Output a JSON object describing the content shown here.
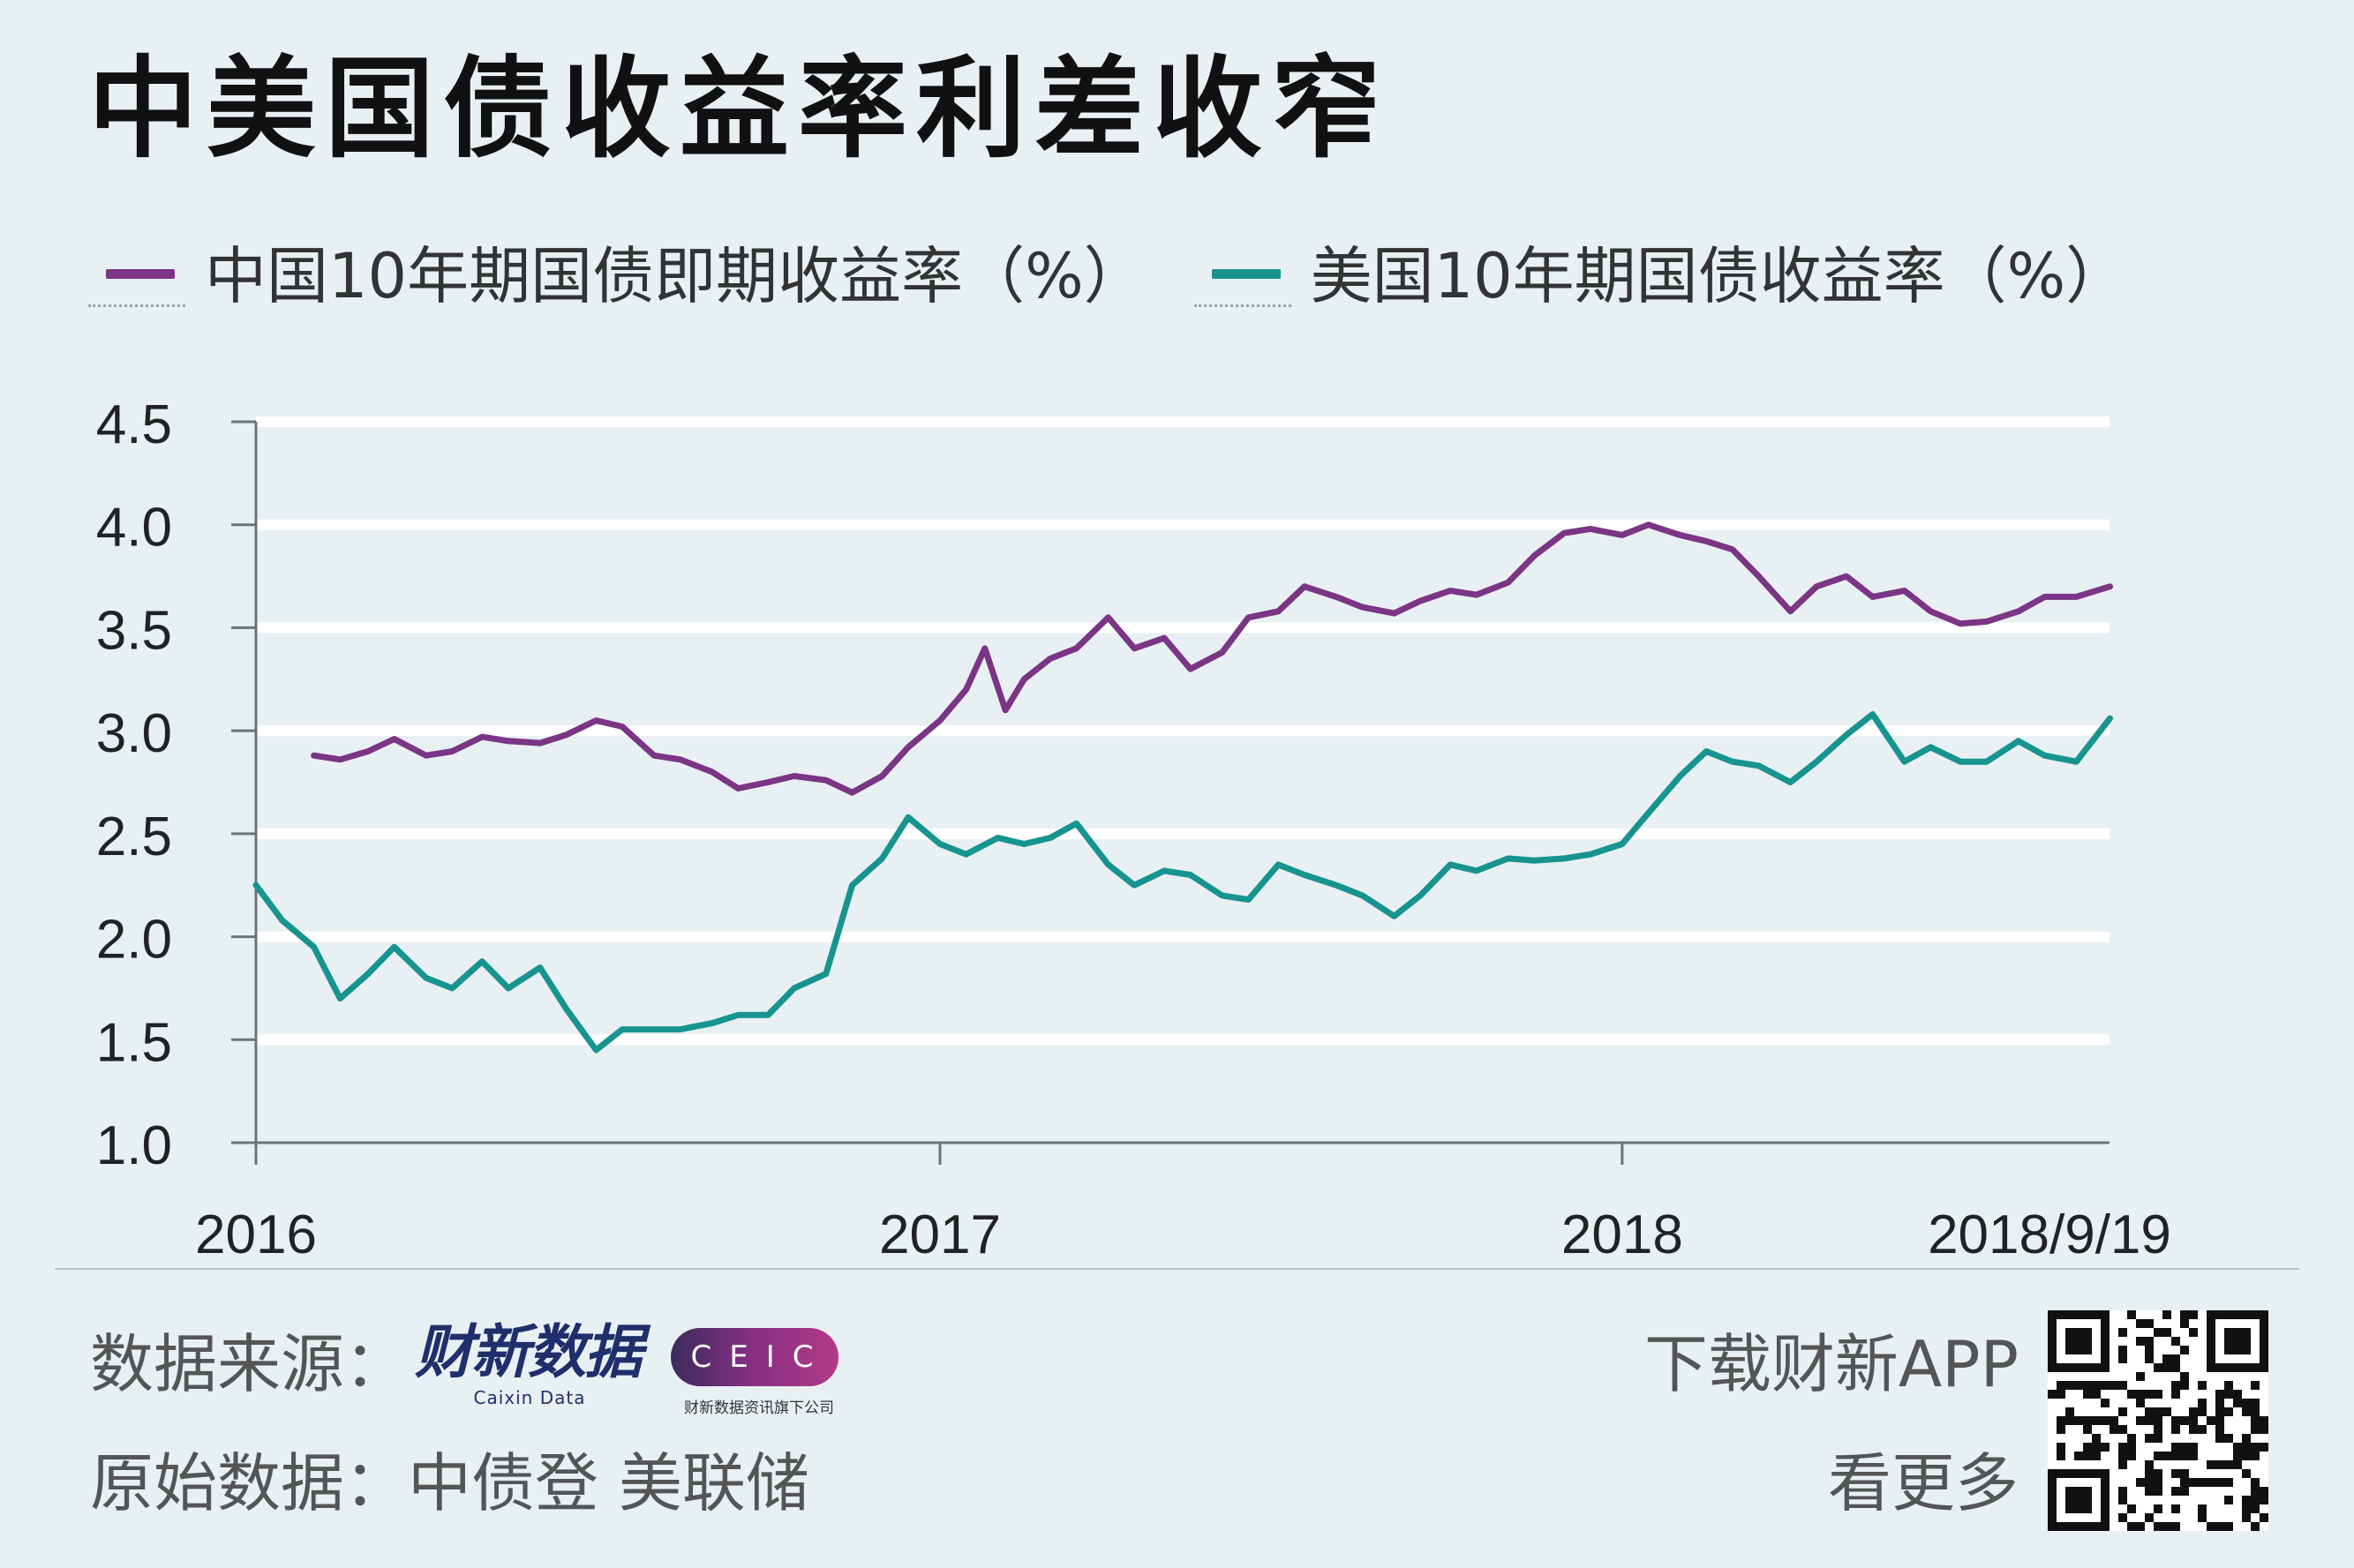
{
  "title": "中美国债收益率利差收窄",
  "legend": [
    {
      "label": "中国10年期国债即期收益率（%）",
      "color": "#7b3585"
    },
    {
      "label": "美国10年期国债收益率（%）",
      "color": "#17948f"
    }
  ],
  "chart_data": {
    "type": "line",
    "title": "中美国债收益率利差收窄",
    "xlabel": "",
    "ylabel": "",
    "ylim": [
      1.0,
      4.5
    ],
    "yticks": [
      "4.5",
      "4.0",
      "3.5",
      "3.0",
      "2.5",
      "2.0",
      "1.5",
      "1.0"
    ],
    "xlim": [
      "2016-01-01",
      "2018-09-19"
    ],
    "xticks": [
      {
        "label": "2016",
        "date": "2016-01-01"
      },
      {
        "label": "2017",
        "date": "2017-01-01"
      },
      {
        "label": "2018",
        "date": "2018-01-01"
      },
      {
        "label": "2018/9/19",
        "date": "2018-09-19"
      }
    ],
    "grid": true,
    "legend_position": "top",
    "series": [
      {
        "name": "中国10年期国债即期收益率（%）",
        "color": "#7b3585",
        "points": [
          [
            "2016-02-01",
            2.88
          ],
          [
            "2016-02-15",
            2.86
          ],
          [
            "2016-03-01",
            2.9
          ],
          [
            "2016-03-15",
            2.96
          ],
          [
            "2016-04-01",
            2.88
          ],
          [
            "2016-04-15",
            2.9
          ],
          [
            "2016-05-01",
            2.97
          ],
          [
            "2016-05-15",
            2.95
          ],
          [
            "2016-06-01",
            2.94
          ],
          [
            "2016-06-15",
            2.98
          ],
          [
            "2016-07-01",
            3.05
          ],
          [
            "2016-07-15",
            3.02
          ],
          [
            "2016-08-01",
            2.88
          ],
          [
            "2016-08-15",
            2.86
          ],
          [
            "2016-09-01",
            2.8
          ],
          [
            "2016-09-15",
            2.72
          ],
          [
            "2016-10-01",
            2.75
          ],
          [
            "2016-10-15",
            2.78
          ],
          [
            "2016-11-01",
            2.76
          ],
          [
            "2016-11-15",
            2.7
          ],
          [
            "2016-12-01",
            2.78
          ],
          [
            "2016-12-15",
            2.92
          ],
          [
            "2017-01-01",
            3.05
          ],
          [
            "2017-01-15",
            3.2
          ],
          [
            "2017-01-25",
            3.4
          ],
          [
            "2017-02-05",
            3.1
          ],
          [
            "2017-02-15",
            3.25
          ],
          [
            "2017-03-01",
            3.35
          ],
          [
            "2017-03-15",
            3.4
          ],
          [
            "2017-04-01",
            3.55
          ],
          [
            "2017-04-15",
            3.4
          ],
          [
            "2017-05-01",
            3.45
          ],
          [
            "2017-05-15",
            3.3
          ],
          [
            "2017-06-01",
            3.38
          ],
          [
            "2017-06-15",
            3.55
          ],
          [
            "2017-07-01",
            3.58
          ],
          [
            "2017-07-15",
            3.7
          ],
          [
            "2017-08-01",
            3.65
          ],
          [
            "2017-08-15",
            3.6
          ],
          [
            "2017-09-01",
            3.57
          ],
          [
            "2017-09-15",
            3.63
          ],
          [
            "2017-10-01",
            3.68
          ],
          [
            "2017-10-15",
            3.66
          ],
          [
            "2017-11-01",
            3.72
          ],
          [
            "2017-11-15",
            3.85
          ],
          [
            "2017-12-01",
            3.96
          ],
          [
            "2017-12-15",
            3.98
          ],
          [
            "2018-01-01",
            3.95
          ],
          [
            "2018-01-15",
            4.0
          ],
          [
            "2018-02-01",
            3.95
          ],
          [
            "2018-02-15",
            3.92
          ],
          [
            "2018-03-01",
            3.88
          ],
          [
            "2018-03-15",
            3.75
          ],
          [
            "2018-04-01",
            3.58
          ],
          [
            "2018-04-15",
            3.7
          ],
          [
            "2018-05-01",
            3.75
          ],
          [
            "2018-05-15",
            3.65
          ],
          [
            "2018-06-01",
            3.68
          ],
          [
            "2018-06-15",
            3.58
          ],
          [
            "2018-07-01",
            3.52
          ],
          [
            "2018-07-15",
            3.53
          ],
          [
            "2018-08-01",
            3.58
          ],
          [
            "2018-08-15",
            3.65
          ],
          [
            "2018-09-01",
            3.65
          ],
          [
            "2018-09-19",
            3.7
          ]
        ]
      },
      {
        "name": "美国10年期国债收益率（%）",
        "color": "#17948f",
        "points": [
          [
            "2016-01-01",
            2.25
          ],
          [
            "2016-01-15",
            2.08
          ],
          [
            "2016-02-01",
            1.95
          ],
          [
            "2016-02-15",
            1.7
          ],
          [
            "2016-03-01",
            1.82
          ],
          [
            "2016-03-15",
            1.95
          ],
          [
            "2016-04-01",
            1.8
          ],
          [
            "2016-04-15",
            1.75
          ],
          [
            "2016-05-01",
            1.88
          ],
          [
            "2016-05-15",
            1.75
          ],
          [
            "2016-06-01",
            1.85
          ],
          [
            "2016-06-15",
            1.65
          ],
          [
            "2016-07-01",
            1.45
          ],
          [
            "2016-07-15",
            1.55
          ],
          [
            "2016-08-01",
            1.55
          ],
          [
            "2016-08-15",
            1.55
          ],
          [
            "2016-09-01",
            1.58
          ],
          [
            "2016-09-15",
            1.62
          ],
          [
            "2016-10-01",
            1.62
          ],
          [
            "2016-10-15",
            1.75
          ],
          [
            "2016-11-01",
            1.82
          ],
          [
            "2016-11-15",
            2.25
          ],
          [
            "2016-12-01",
            2.38
          ],
          [
            "2016-12-15",
            2.58
          ],
          [
            "2017-01-01",
            2.45
          ],
          [
            "2017-01-15",
            2.4
          ],
          [
            "2017-02-01",
            2.48
          ],
          [
            "2017-02-15",
            2.45
          ],
          [
            "2017-03-01",
            2.48
          ],
          [
            "2017-03-15",
            2.55
          ],
          [
            "2017-04-01",
            2.35
          ],
          [
            "2017-04-15",
            2.25
          ],
          [
            "2017-05-01",
            2.32
          ],
          [
            "2017-05-15",
            2.3
          ],
          [
            "2017-06-01",
            2.2
          ],
          [
            "2017-06-15",
            2.18
          ],
          [
            "2017-07-01",
            2.35
          ],
          [
            "2017-07-15",
            2.3
          ],
          [
            "2017-08-01",
            2.25
          ],
          [
            "2017-08-15",
            2.2
          ],
          [
            "2017-09-01",
            2.1
          ],
          [
            "2017-09-15",
            2.2
          ],
          [
            "2017-10-01",
            2.35
          ],
          [
            "2017-10-15",
            2.32
          ],
          [
            "2017-11-01",
            2.38
          ],
          [
            "2017-11-15",
            2.37
          ],
          [
            "2017-12-01",
            2.38
          ],
          [
            "2017-12-15",
            2.4
          ],
          [
            "2018-01-01",
            2.45
          ],
          [
            "2018-01-15",
            2.6
          ],
          [
            "2018-02-01",
            2.78
          ],
          [
            "2018-02-15",
            2.9
          ],
          [
            "2018-03-01",
            2.85
          ],
          [
            "2018-03-15",
            2.83
          ],
          [
            "2018-04-01",
            2.75
          ],
          [
            "2018-04-15",
            2.85
          ],
          [
            "2018-05-01",
            2.98
          ],
          [
            "2018-05-15",
            3.08
          ],
          [
            "2018-06-01",
            2.85
          ],
          [
            "2018-06-15",
            2.92
          ],
          [
            "2018-07-01",
            2.85
          ],
          [
            "2018-07-15",
            2.85
          ],
          [
            "2018-08-01",
            2.95
          ],
          [
            "2018-08-15",
            2.88
          ],
          [
            "2018-09-01",
            2.85
          ],
          [
            "2018-09-19",
            3.06
          ]
        ]
      }
    ]
  },
  "footer": {
    "source_label": "数据来源：",
    "brand_caixin": "财新数据",
    "brand_caixin_en": "Caixin Data",
    "brand_ceic": "CEIC",
    "brand_ceic_sub": "财新数据资讯旗下公司",
    "raw_data": "原始数据：中债登 美联储",
    "download": "下载财新APP",
    "see_more": "看更多"
  }
}
